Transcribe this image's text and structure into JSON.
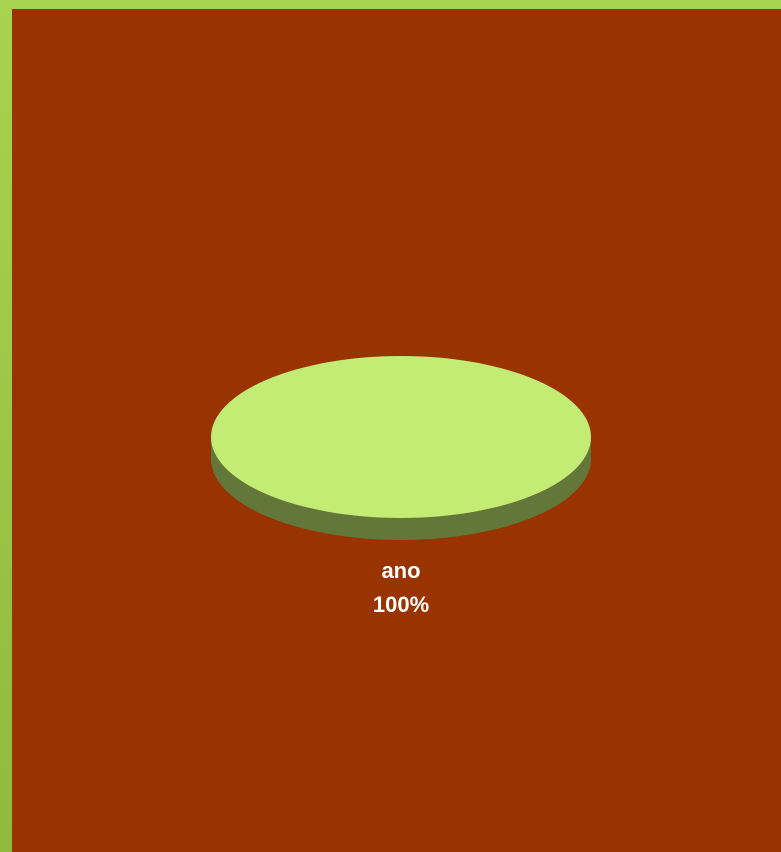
{
  "chart_data": {
    "type": "pie",
    "style": "3d",
    "slices": [
      {
        "label": "ano",
        "percent_label": "100%",
        "value": 100,
        "color": "#c3ec75",
        "side_color": "#63773b"
      }
    ],
    "background_color": "#993300",
    "frame_color": "#a6d44e"
  }
}
